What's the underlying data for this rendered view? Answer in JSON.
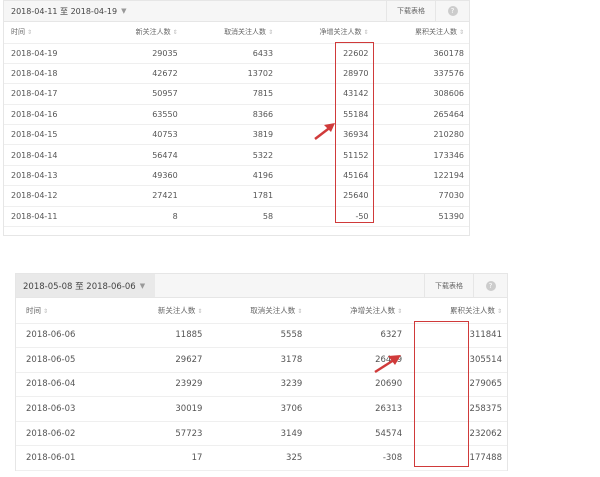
{
  "accent_color": "#d03a3a",
  "tables": [
    {
      "range": "2018-04-11 至 2018-04-19",
      "download_label": "下载表格",
      "help_icon": "?",
      "columns": [
        "时间",
        "新关注人数",
        "取消关注人数",
        "净增关注人数",
        "累积关注人数"
      ],
      "rows": [
        [
          "2018-04-19",
          "29035",
          "6433",
          "22602",
          "360178"
        ],
        [
          "2018-04-18",
          "42672",
          "13702",
          "28970",
          "337576"
        ],
        [
          "2018-04-17",
          "50957",
          "7815",
          "43142",
          "308606"
        ],
        [
          "2018-04-16",
          "63550",
          "8366",
          "55184",
          "265464"
        ],
        [
          "2018-04-15",
          "40753",
          "3819",
          "36934",
          "210280"
        ],
        [
          "2018-04-14",
          "56474",
          "5322",
          "51152",
          "173346"
        ],
        [
          "2018-04-13",
          "49360",
          "4196",
          "45164",
          "122194"
        ],
        [
          "2018-04-12",
          "27421",
          "1781",
          "25640",
          "77030"
        ],
        [
          "2018-04-11",
          "8",
          "58",
          "-50",
          "51390"
        ]
      ]
    },
    {
      "range": "2018-05-08 至 2018-06-06",
      "download_label": "下载表格",
      "help_icon": "?",
      "columns": [
        "时间",
        "新关注人数",
        "取消关注人数",
        "净增关注人数",
        "累积关注人数"
      ],
      "rows": [
        [
          "2018-06-06",
          "11885",
          "5558",
          "6327",
          "311841"
        ],
        [
          "2018-06-05",
          "29627",
          "3178",
          "26449",
          "305514"
        ],
        [
          "2018-06-04",
          "23929",
          "3239",
          "20690",
          "279065"
        ],
        [
          "2018-06-03",
          "30019",
          "3706",
          "26313",
          "258375"
        ],
        [
          "2018-06-02",
          "57723",
          "3149",
          "54574",
          "232062"
        ],
        [
          "2018-06-01",
          "17",
          "325",
          "-308",
          "177488"
        ]
      ]
    }
  ]
}
